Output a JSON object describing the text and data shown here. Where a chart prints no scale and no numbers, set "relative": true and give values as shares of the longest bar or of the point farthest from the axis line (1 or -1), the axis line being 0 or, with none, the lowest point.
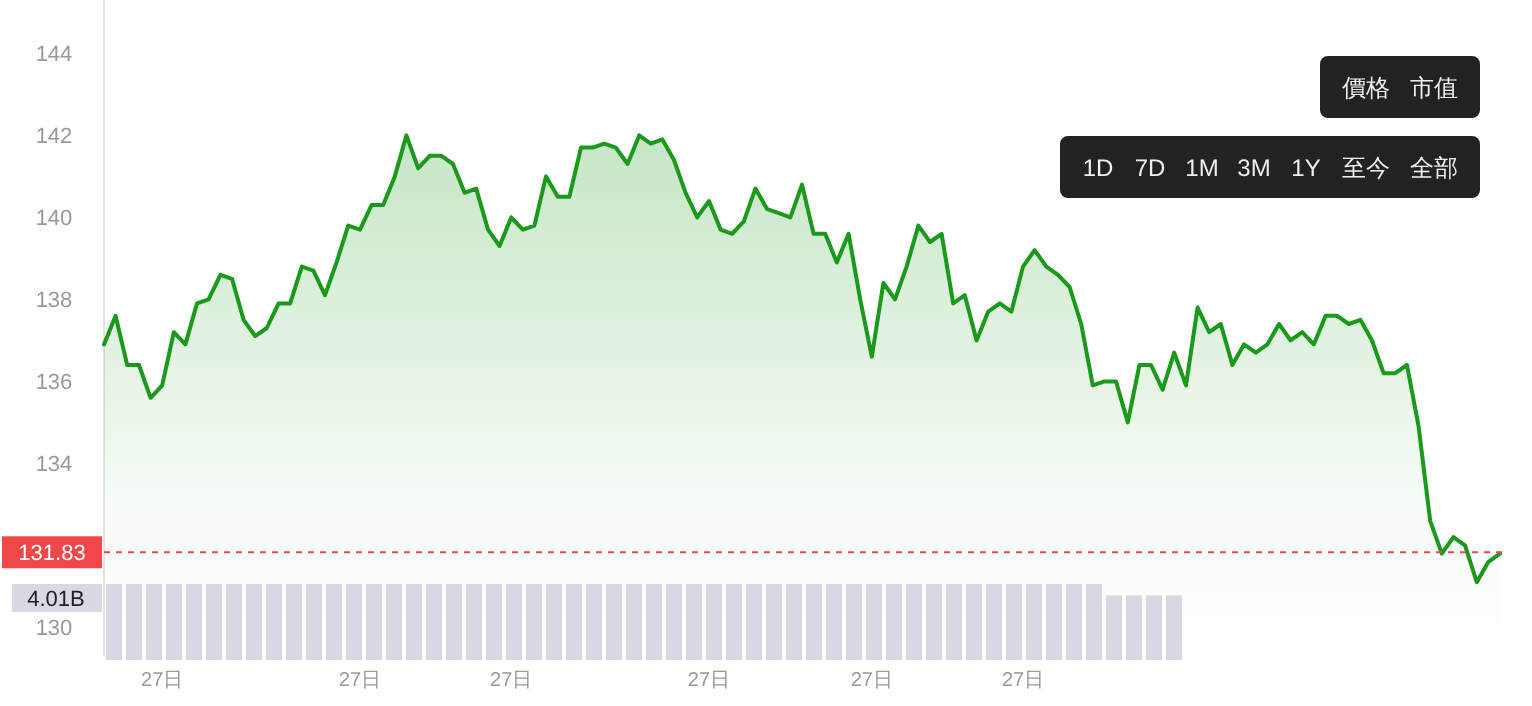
{
  "chart_data": [
    {
      "type": "area",
      "categories": [
        null,
        null,
        null,
        null,
        null,
        "27日",
        null,
        null,
        null,
        null,
        null,
        null,
        null,
        null,
        null,
        null,
        null,
        null,
        null,
        null,
        null,
        null,
        "27日",
        null,
        null,
        null,
        null,
        null,
        null,
        null,
        null,
        null,
        null,
        null,
        null,
        "27日",
        null,
        null,
        null,
        null,
        null,
        null,
        null,
        null,
        null,
        null,
        null,
        null,
        null,
        null,
        null,
        null,
        "27日",
        null,
        null,
        null,
        null,
        null,
        null,
        null,
        null,
        null,
        null,
        null,
        null,
        null,
        "27日",
        null,
        null,
        null,
        null,
        null,
        null,
        null,
        null,
        null,
        null,
        null,
        null,
        "27日",
        null,
        null,
        null,
        null,
        null,
        null,
        null,
        null,
        null,
        null,
        null,
        null,
        null,
        null,
        null,
        null,
        null,
        null,
        null,
        null,
        null,
        null,
        null,
        null,
        null,
        null,
        null,
        null,
        null,
        null,
        null,
        null,
        null,
        null,
        null,
        null,
        null,
        null,
        null,
        null,
        null
      ],
      "series": [
        {
          "color": "#1a9a1a",
          "values": [
            136.9,
            137.6,
            136.4,
            136.4,
            135.6,
            135.9,
            137.2,
            136.9,
            137.9,
            138.0,
            138.6,
            138.5,
            137.5,
            137.1,
            137.3,
            137.9,
            137.9,
            138.8,
            138.7,
            138.1,
            138.9,
            139.8,
            139.7,
            140.3,
            140.3,
            141.0,
            142.0,
            141.2,
            141.5,
            141.5,
            141.3,
            140.6,
            140.7,
            139.7,
            139.3,
            140.0,
            139.7,
            139.8,
            141.0,
            140.5,
            140.5,
            141.7,
            141.7,
            141.8,
            141.7,
            141.3,
            142.0,
            141.8,
            141.9,
            141.4,
            140.6,
            140.0,
            140.4,
            139.7,
            139.6,
            139.9,
            140.7,
            140.2,
            140.1,
            140.0,
            140.8,
            139.6,
            139.6,
            138.9,
            139.6,
            138.0,
            136.6,
            138.4,
            138.0,
            138.8,
            139.8,
            139.4,
            139.6,
            137.9,
            138.1,
            137.0,
            137.7,
            137.9,
            137.7,
            138.8,
            139.2,
            138.8,
            138.6,
            138.3,
            137.4,
            135.9,
            136.0,
            136.0,
            135.0,
            136.4,
            136.4,
            135.8,
            136.7,
            135.9,
            137.8,
            137.2,
            137.4,
            136.4,
            136.9,
            136.7,
            136.9,
            137.4,
            137.0,
            137.2,
            136.9,
            137.6,
            137.6,
            137.4,
            137.5,
            137.0,
            136.2,
            136.2,
            136.4,
            134.9,
            132.6,
            131.8,
            132.2,
            132.0,
            131.1,
            131.6,
            131.8
          ]
        }
      ],
      "ylim": [
        129.3,
        145.3
      ],
      "yticks": [
        130,
        134,
        136,
        138,
        140,
        142,
        144
      ],
      "ref_lines": [
        {
          "axis": "y",
          "value": 131.83,
          "label": "131.83",
          "color": "#f04848",
          "line_style": "dashed"
        }
      ]
    },
    {
      "type": "bar",
      "relative": true,
      "categories": [
        null,
        null,
        null,
        null,
        null,
        null,
        null,
        null,
        null,
        null,
        null,
        null,
        null,
        null,
        null,
        null,
        null,
        null,
        null,
        null,
        null,
        null,
        null,
        null,
        null,
        null,
        null,
        null,
        null,
        null,
        null,
        null,
        null,
        null,
        null,
        null,
        null,
        null,
        null,
        null,
        null,
        null,
        null,
        null,
        null,
        null,
        null,
        null,
        null,
        null,
        null,
        null,
        null,
        null
      ],
      "values": [
        1,
        1,
        1,
        1,
        1,
        1,
        1,
        1,
        1,
        1,
        1,
        1,
        1,
        1,
        1,
        1,
        1,
        1,
        1,
        1,
        1,
        1,
        1,
        1,
        1,
        1,
        1,
        1,
        1,
        1,
        1,
        1,
        1,
        1,
        1,
        1,
        1,
        1,
        1,
        1,
        1,
        1,
        1,
        1,
        1,
        1,
        1,
        1,
        1,
        1,
        0.85,
        0.85,
        0.85,
        0.85
      ],
      "color": "#d8d8e2",
      "annotations": [
        "4.01B"
      ]
    },
    {
      "type": "other",
      "annotations": [
        "價格",
        "市值"
      ]
    },
    {
      "type": "other",
      "annotations": [
        "1D",
        "7D",
        "1M",
        "3M",
        "1Y",
        "至今",
        "全部"
      ]
    }
  ]
}
